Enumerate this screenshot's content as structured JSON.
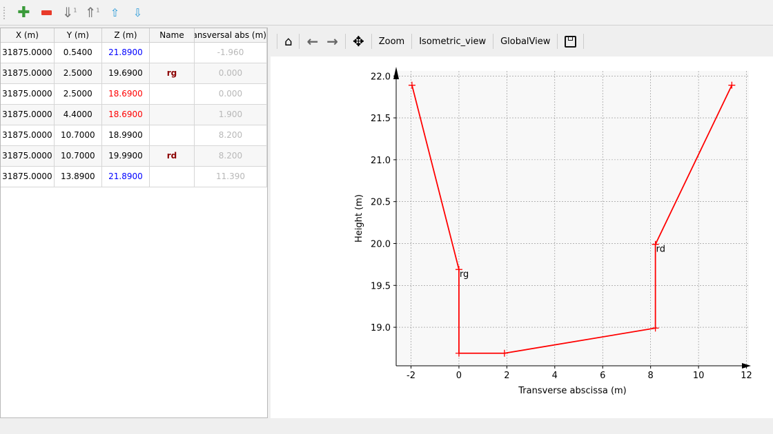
{
  "toolbar": {
    "buttons": [
      {
        "name": "add-row",
        "icon": "plus-icon"
      },
      {
        "name": "remove-row",
        "icon": "minus-icon"
      },
      {
        "name": "sort-ascending",
        "icon": "sort-down-icon"
      },
      {
        "name": "sort-descending",
        "icon": "sort-up-icon"
      },
      {
        "name": "move-up",
        "icon": "arrow-up-icon"
      },
      {
        "name": "move-down",
        "icon": "arrow-down-icon"
      }
    ]
  },
  "table": {
    "headers": [
      "X (m)",
      "Y (m)",
      "Z (m)",
      "Name",
      "Transversal abs (m)"
    ],
    "rows": [
      {
        "x": "31875.0000",
        "y": "0.5400",
        "z": "21.8900",
        "z_color": "#0000ff",
        "name": "",
        "t": "-1.960"
      },
      {
        "x": "31875.0000",
        "y": "2.5000",
        "z": "19.6900",
        "z_color": "#000000",
        "name": "rg",
        "t": "0.000"
      },
      {
        "x": "31875.0000",
        "y": "2.5000",
        "z": "18.6900",
        "z_color": "#ff0000",
        "name": "",
        "t": "0.000"
      },
      {
        "x": "31875.0000",
        "y": "4.4000",
        "z": "18.6900",
        "z_color": "#ff0000",
        "name": "",
        "t": "1.900"
      },
      {
        "x": "31875.0000",
        "y": "10.7000",
        "z": "18.9900",
        "z_color": "#000000",
        "name": "",
        "t": "8.200"
      },
      {
        "x": "31875.0000",
        "y": "10.7000",
        "z": "19.9900",
        "z_color": "#000000",
        "name": "rd",
        "t": "8.200"
      },
      {
        "x": "31875.0000",
        "y": "13.8900",
        "z": "21.8900",
        "z_color": "#0000ff",
        "name": "",
        "t": "11.390"
      }
    ]
  },
  "chart_toolbar": {
    "zoom": "Zoom",
    "isometric": "Isometric_view",
    "global": "GlobalView"
  },
  "chart_data": {
    "type": "line",
    "xlabel": "Transverse abscissa (m)",
    "ylabel": "Height (m)",
    "x": [
      -1.96,
      0,
      0,
      1.9,
      8.2,
      8.2,
      11.39
    ],
    "y": [
      21.89,
      19.69,
      18.69,
      18.69,
      18.99,
      19.99,
      21.89
    ],
    "color": "#ff0000",
    "marker": "+",
    "annotations": [
      {
        "text": "rg",
        "x": 0,
        "y": 19.69
      },
      {
        "text": "rd",
        "x": 8.2,
        "y": 19.99
      }
    ],
    "xlim": [
      -2.62,
      12.1
    ],
    "ylim": [
      18.54,
      22.06
    ],
    "xticks": [
      -2,
      0,
      2,
      4,
      6,
      8,
      10,
      12
    ],
    "yticks": [
      19.0,
      19.5,
      20.0,
      20.5,
      21.0,
      21.5,
      22.0
    ],
    "grid": true
  }
}
